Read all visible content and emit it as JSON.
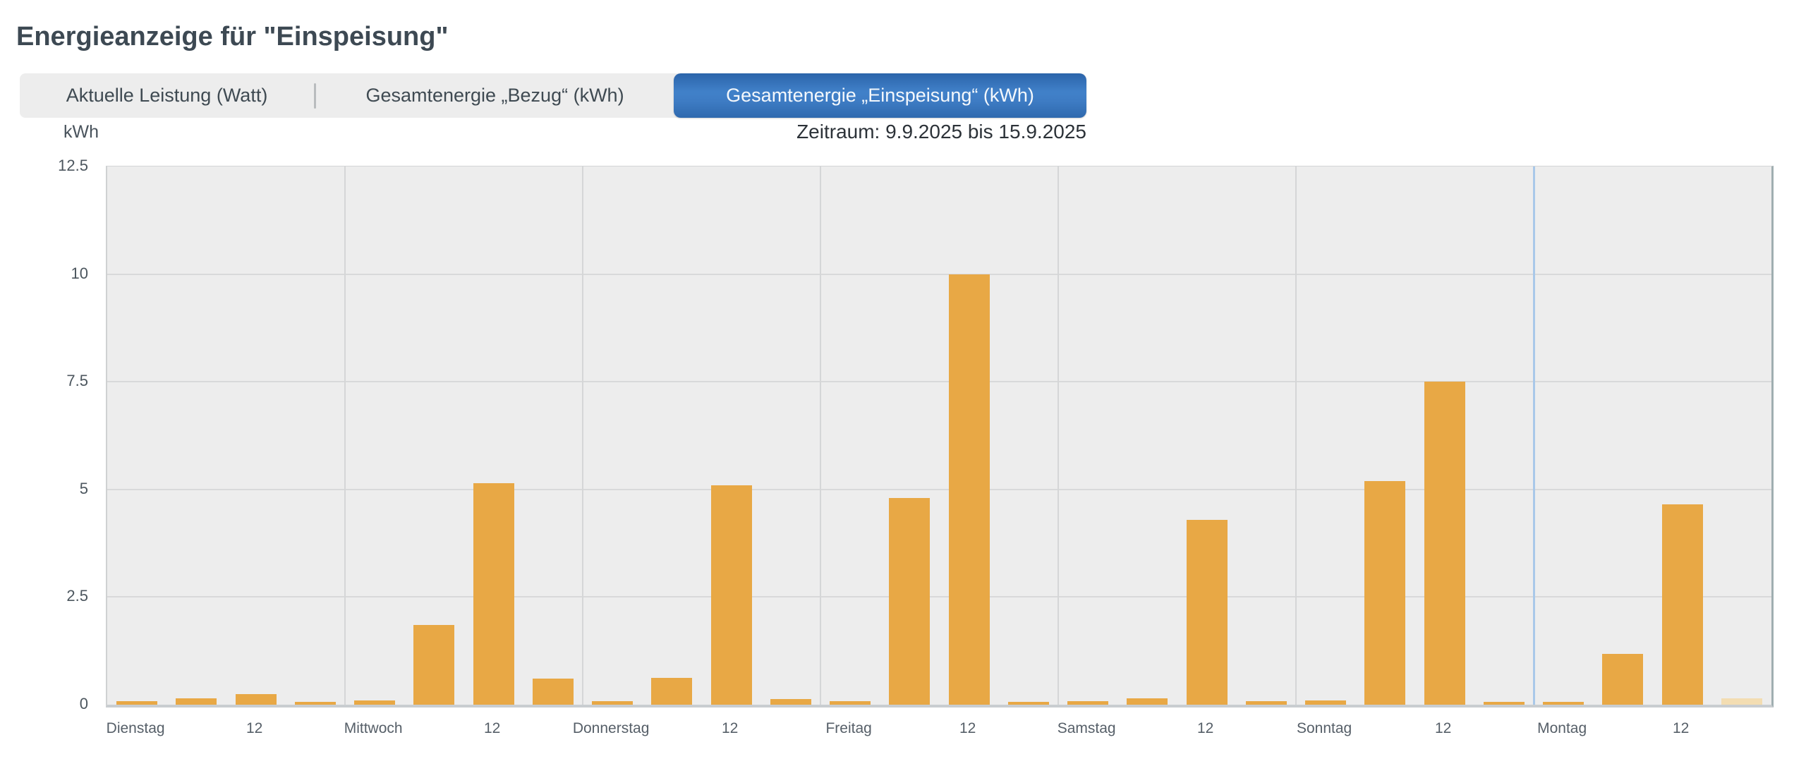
{
  "page": {
    "title": "Energieanzeige für \"Einspeisung\""
  },
  "tabs": [
    {
      "id": "aktuelle-leistung",
      "label": "Aktuelle Leistung (Watt)",
      "active": false
    },
    {
      "id": "gesamtenergie-bezug",
      "label": "Gesamtenergie „Bezug“ (kWh)",
      "active": false
    },
    {
      "id": "gesamtenergie-einspeisung",
      "label": "Gesamtenergie „Einspeisung“ (kWh)",
      "active": true
    }
  ],
  "period": {
    "label": "Zeitraum: 9.9.2025 bis 15.9.2025"
  },
  "chart_data": {
    "type": "bar",
    "title": "",
    "unit_label": "kWh",
    "noon_tick_label": "12",
    "ylim": [
      0,
      12.5
    ],
    "yticks": [
      0,
      2.5,
      5,
      7.5,
      10,
      12.5
    ],
    "grid": true,
    "bars_per_day": 4,
    "slot_hours": [
      0,
      6,
      12,
      18
    ],
    "categories": [
      "Dienstag",
      "Mittwoch",
      "Donnerstag",
      "Freitag",
      "Samstag",
      "Sonntag",
      "Montag"
    ],
    "days": [
      {
        "name": "Dienstag",
        "values": [
          0.09,
          0.14,
          0.25,
          0.06
        ]
      },
      {
        "name": "Mittwoch",
        "values": [
          0.1,
          1.85,
          5.15,
          0.6
        ]
      },
      {
        "name": "Donnerstag",
        "values": [
          0.08,
          0.62,
          5.1,
          0.13
        ]
      },
      {
        "name": "Freitag",
        "values": [
          0.09,
          4.8,
          10.0,
          0.06
        ]
      },
      {
        "name": "Samstag",
        "values": [
          0.09,
          0.14,
          4.3,
          0.08
        ]
      },
      {
        "name": "Sonntag",
        "values": [
          0.1,
          5.2,
          7.5,
          0.07
        ]
      },
      {
        "name": "Montag",
        "values": [
          0.06,
          1.18,
          4.65,
          0.15
        ]
      }
    ],
    "bar_color": "#e8a845",
    "partial_bar_color": "#f3ddb2",
    "partial_bar": {
      "day": 6,
      "slot": 3
    },
    "now_line": {
      "day_boundary": 6,
      "color": "#a9c8e9"
    },
    "plot_bg": "#ededed",
    "gridline_color": "#d8d9da"
  }
}
